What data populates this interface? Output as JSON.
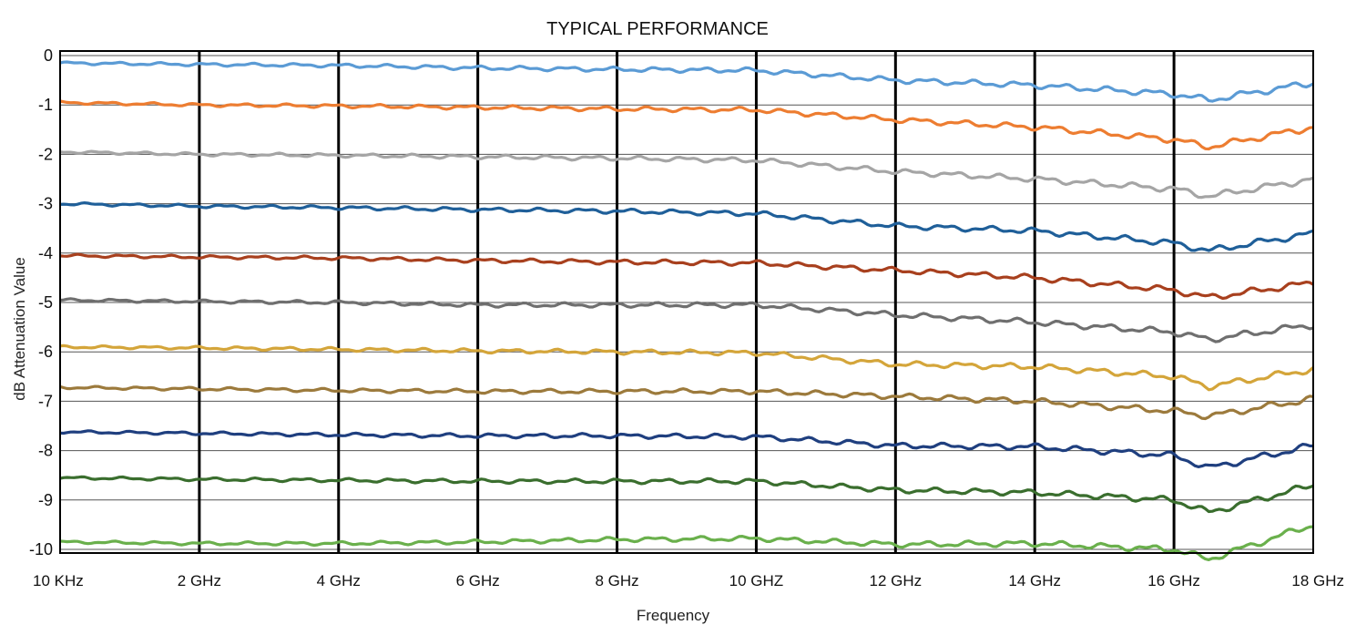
{
  "chart_data": {
    "type": "line",
    "title": "TYPICAL PERFORMANCE",
    "xlabel": "Frequency",
    "ylabel": "dB Attenuation Value",
    "x_ticks": [
      "10 KHz",
      "2 GHz",
      "4 GHz",
      "6 GHz",
      "8 GHz",
      "10 GHZ",
      "12 GHz",
      "14 GHz",
      "16 GHz",
      "18 GHz"
    ],
    "y_ticks": [
      "0",
      "-1",
      "-2",
      "-3",
      "-4",
      "-5",
      "-6",
      "-7",
      "-8",
      "-9",
      "-10"
    ],
    "xlim": [
      0,
      18
    ],
    "ylim": [
      -10.5,
      0
    ],
    "grid": true,
    "x": [
      0,
      2,
      4,
      6,
      8,
      10,
      12,
      14,
      16,
      16.5,
      18
    ],
    "series": [
      {
        "color": "#5b9bd5",
        "values": [
          -0.15,
          -0.18,
          -0.2,
          -0.25,
          -0.28,
          -0.3,
          -0.5,
          -0.6,
          -0.78,
          -0.9,
          -0.55
        ]
      },
      {
        "color": "#ed7d31",
        "values": [
          -0.95,
          -1.0,
          -1.02,
          -1.05,
          -1.08,
          -1.1,
          -1.3,
          -1.45,
          -1.7,
          -1.85,
          -1.45
        ]
      },
      {
        "color": "#a5a5a5",
        "values": [
          -1.95,
          -2.0,
          -2.02,
          -2.05,
          -2.08,
          -2.12,
          -2.35,
          -2.5,
          -2.7,
          -2.85,
          -2.5
        ]
      },
      {
        "color": "#1f5f99",
        "values": [
          -3.0,
          -3.05,
          -3.08,
          -3.12,
          -3.15,
          -3.2,
          -3.45,
          -3.55,
          -3.8,
          -3.95,
          -3.6
        ]
      },
      {
        "color": "#a8401e",
        "values": [
          -4.05,
          -4.08,
          -4.1,
          -4.15,
          -4.18,
          -4.2,
          -4.35,
          -4.5,
          -4.75,
          -4.9,
          -4.6
        ]
      },
      {
        "color": "#6f6f6f",
        "values": [
          -4.95,
          -4.98,
          -5.0,
          -5.05,
          -5.05,
          -5.05,
          -5.25,
          -5.4,
          -5.6,
          -5.75,
          -5.45
        ]
      },
      {
        "color": "#d4a53a",
        "values": [
          -5.9,
          -5.92,
          -5.95,
          -5.98,
          -6.0,
          -6.02,
          -6.25,
          -6.3,
          -6.5,
          -6.7,
          -6.35
        ]
      },
      {
        "color": "#9c7a3c",
        "values": [
          -6.72,
          -6.75,
          -6.78,
          -6.8,
          -6.8,
          -6.8,
          -6.9,
          -7.0,
          -7.2,
          -7.3,
          -6.95
        ]
      },
      {
        "color": "#1f3f7f",
        "values": [
          -7.62,
          -7.65,
          -7.68,
          -7.7,
          -7.7,
          -7.72,
          -7.9,
          -7.92,
          -8.1,
          -8.35,
          -7.9
        ]
      },
      {
        "color": "#3a6e2e",
        "values": [
          -8.55,
          -8.58,
          -8.6,
          -8.62,
          -8.62,
          -8.62,
          -8.8,
          -8.85,
          -9.0,
          -9.25,
          -8.7
        ]
      },
      {
        "color": "#6ab04c",
        "values": [
          -9.85,
          -9.88,
          -9.88,
          -9.85,
          -9.8,
          -9.78,
          -9.9,
          -9.88,
          -10.0,
          -10.2,
          -9.5
        ]
      }
    ]
  }
}
